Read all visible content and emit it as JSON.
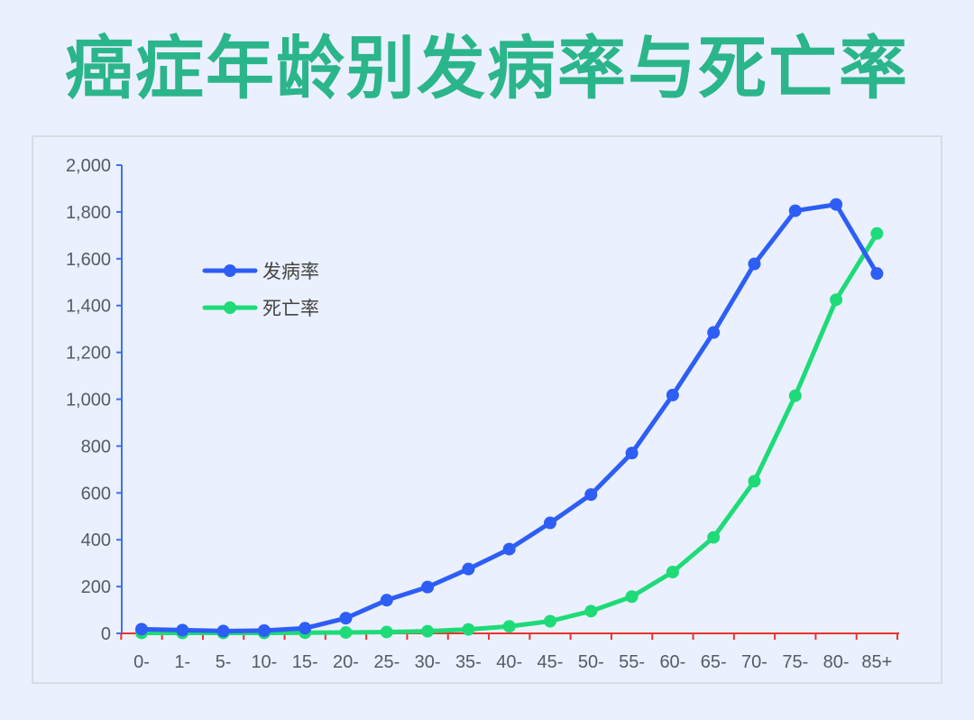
{
  "title": "癌症年龄别发病率与死亡率",
  "chart_data": {
    "type": "line",
    "title": "癌症年龄别发病率与死亡率",
    "xlabel": "",
    "ylabel": "",
    "categories": [
      "0-",
      "1-",
      "5-",
      "10-",
      "15-",
      "20-",
      "25-",
      "30-",
      "35-",
      "40-",
      "45-",
      "50-",
      "55-",
      "60-",
      "65-",
      "70-",
      "75-",
      "80-",
      "85+"
    ],
    "ylim": [
      0,
      2000
    ],
    "yticks": [
      "0",
      "200",
      "400",
      "600",
      "800",
      "1,000",
      "1,200",
      "1,400",
      "1,600",
      "1,800",
      "2,000"
    ],
    "grid": false,
    "legend_position": "top-left",
    "series": [
      {
        "name": "发病率",
        "color": "#2d5ef5",
        "values": [
          18,
          14,
          10,
          12,
          22,
          65,
          142,
          198,
          275,
          360,
          472,
          593,
          770,
          1018,
          1285,
          1578,
          1805,
          1832,
          1537
        ]
      },
      {
        "name": "死亡率",
        "color": "#1edb78",
        "values": [
          2,
          2,
          2,
          2,
          3,
          4,
          6,
          9,
          17,
          30,
          52,
          95,
          157,
          262,
          410,
          650,
          1015,
          1425,
          1708
        ]
      }
    ],
    "colors": {
      "axis_y": "#3a6ff7",
      "axis_x": "#e8342d",
      "title": "#2bb58a"
    }
  }
}
